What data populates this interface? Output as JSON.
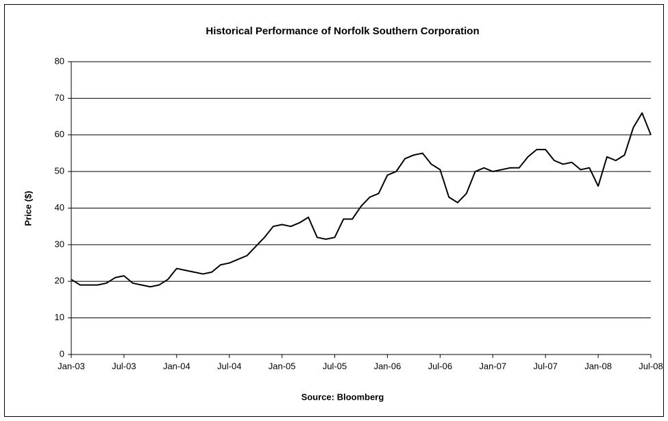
{
  "chart_data": {
    "type": "line",
    "title": "Historical Performance of Norfolk Southern Corporation",
    "y_label": "Price ($)",
    "x_label": "Source: Bloomberg",
    "x": [
      "2003-01",
      "2003-02",
      "2003-03",
      "2003-04",
      "2003-05",
      "2003-06",
      "2003-07",
      "2003-08",
      "2003-09",
      "2003-10",
      "2003-11",
      "2003-12",
      "2004-01",
      "2004-02",
      "2004-03",
      "2004-04",
      "2004-05",
      "2004-06",
      "2004-07",
      "2004-08",
      "2004-09",
      "2004-10",
      "2004-11",
      "2004-12",
      "2005-01",
      "2005-02",
      "2005-03",
      "2005-04",
      "2005-05",
      "2005-06",
      "2005-07",
      "2005-08",
      "2005-09",
      "2005-10",
      "2005-11",
      "2005-12",
      "2006-01",
      "2006-02",
      "2006-03",
      "2006-04",
      "2006-05",
      "2006-06",
      "2006-07",
      "2006-08",
      "2006-09",
      "2006-10",
      "2006-11",
      "2006-12",
      "2007-01",
      "2007-02",
      "2007-03",
      "2007-04",
      "2007-05",
      "2007-06",
      "2007-07",
      "2007-08",
      "2007-09",
      "2007-10",
      "2007-11",
      "2007-12",
      "2008-01",
      "2008-02",
      "2008-03",
      "2008-04",
      "2008-05",
      "2008-06",
      "2008-07"
    ],
    "series": [
      {
        "color": "#000000",
        "values": [
          20.5,
          19,
          19,
          19,
          19.5,
          21,
          21.5,
          19.5,
          19,
          18.5,
          19,
          20.5,
          23.5,
          23,
          22.5,
          22,
          22.5,
          24.5,
          25,
          26,
          27,
          29.5,
          32,
          35,
          35.5,
          35,
          36,
          37.5,
          32,
          31.5,
          32,
          37,
          37,
          40.5,
          43,
          44,
          49,
          50,
          53.5,
          54.5,
          55,
          52,
          50.5,
          43,
          41.5,
          44,
          50,
          51,
          50,
          50.5,
          51,
          51,
          54,
          56,
          56,
          53,
          52,
          52.5,
          50.5,
          51,
          46,
          54,
          53,
          54.5,
          62,
          66,
          60
        ]
      }
    ],
    "xlim": [
      "2003-01",
      "2008-07"
    ],
    "xticks": [
      {
        "value": "2003-01",
        "label": "Jan-03"
      },
      {
        "value": "2003-07",
        "label": "Jul-03"
      },
      {
        "value": "2004-01",
        "label": "Jan-04"
      },
      {
        "value": "2004-07",
        "label": "Jul-04"
      },
      {
        "value": "2005-01",
        "label": "Jan-05"
      },
      {
        "value": "2005-07",
        "label": "Jul-05"
      },
      {
        "value": "2006-01",
        "label": "Jan-06"
      },
      {
        "value": "2006-07",
        "label": "Jul-06"
      },
      {
        "value": "2007-01",
        "label": "Jan-07"
      },
      {
        "value": "2007-07",
        "label": "Jul-07"
      },
      {
        "value": "2008-01",
        "label": "Jan-08"
      },
      {
        "value": "2008-07",
        "label": "Jul-08"
      }
    ],
    "ylim": [
      0,
      80
    ],
    "yticks": [
      0,
      10,
      20,
      30,
      40,
      50,
      60,
      70,
      80
    ],
    "grid": true
  }
}
